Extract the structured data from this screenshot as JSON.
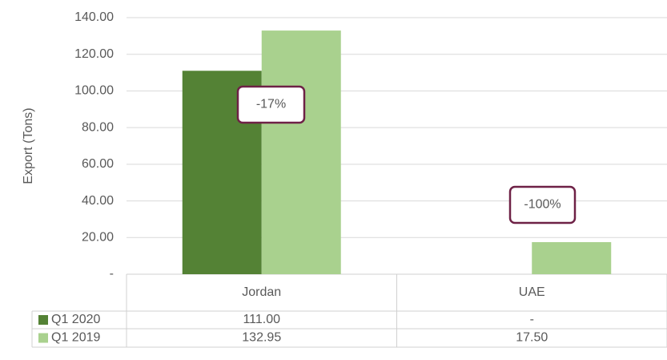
{
  "chart_data": {
    "type": "bar",
    "y_label": "Export (Tons)",
    "categories": [
      "Jordan",
      "UAE"
    ],
    "series": [
      {
        "name": "Q1 2020",
        "color": "#548235",
        "values": [
          111,
          0
        ],
        "value_labels": [
          "111.00",
          "-"
        ]
      },
      {
        "name": "Q1 2019",
        "color": "#a9d18e",
        "values": [
          132.95,
          17.5
        ],
        "value_labels": [
          "132.95",
          "17.50"
        ]
      }
    ],
    "ylim": [
      0,
      140
    ],
    "yticks": [
      {
        "value": 0,
        "label": "-"
      },
      {
        "value": 20,
        "label": "20.00"
      },
      {
        "value": 40,
        "label": "40.00"
      },
      {
        "value": 60,
        "label": "60.00"
      },
      {
        "value": 80,
        "label": "80.00"
      },
      {
        "value": 100,
        "label": "100.00"
      },
      {
        "value": 120,
        "label": "120.00"
      },
      {
        "value": 140,
        "label": "140.00"
      }
    ],
    "grid": true,
    "annotations": [
      "-17%",
      "-100%"
    ]
  }
}
